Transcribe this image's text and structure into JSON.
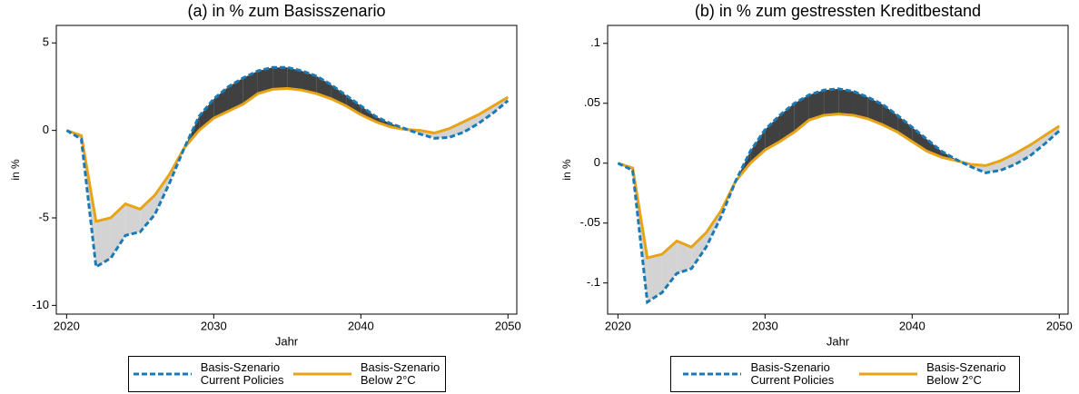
{
  "chart_data": [
    {
      "type": "line",
      "title": "(a)  in % zum Basisszenario",
      "x_label": "Jahr",
      "y_label": "in %",
      "x": [
        2020,
        2021,
        2022,
        2023,
        2024,
        2025,
        2026,
        2027,
        2028,
        2029,
        2030,
        2031,
        2032,
        2033,
        2034,
        2035,
        2036,
        2037,
        2038,
        2039,
        2040,
        2041,
        2042,
        2043,
        2044,
        2045,
        2046,
        2047,
        2048,
        2049,
        2050
      ],
      "series": [
        {
          "name": "Basis-Szenario\nCurrent Policies",
          "color": "#1a7ab5",
          "line_style": "dashed",
          "values": [
            0,
            -0.5,
            -7.8,
            -7.3,
            -6.0,
            -5.8,
            -4.8,
            -3.0,
            -1.0,
            0.8,
            1.8,
            2.5,
            3.0,
            3.4,
            3.6,
            3.6,
            3.4,
            3.1,
            2.6,
            2.0,
            1.4,
            0.8,
            0.4,
            0.1,
            -0.2,
            -0.45,
            -0.4,
            -0.1,
            0.4,
            1.0,
            1.7
          ]
        },
        {
          "name": "Basis-Szenario\nBelow 2°C",
          "color": "#e8a317",
          "line_style": "solid",
          "values": [
            0,
            -0.3,
            -5.2,
            -5.0,
            -4.2,
            -4.5,
            -3.7,
            -2.5,
            -1.0,
            0.0,
            0.7,
            1.1,
            1.5,
            2.1,
            2.35,
            2.4,
            2.3,
            2.1,
            1.8,
            1.4,
            0.9,
            0.5,
            0.2,
            0.05,
            0.0,
            -0.15,
            0.1,
            0.5,
            0.9,
            1.4,
            1.9
          ]
        }
      ],
      "band_colors": {
        "above": "#404040",
        "below": "#d3d3d3"
      },
      "xlim": [
        2019.3,
        2050.6
      ],
      "xticks": [
        2020,
        2030,
        2040,
        2050
      ],
      "ylim": [
        -10.5,
        6
      ],
      "yticks": [
        -10,
        -5,
        0,
        5
      ],
      "legend": "bottom"
    },
    {
      "type": "line",
      "title": "(b)  in % zum gestressten Kreditbestand",
      "x_label": "Jahr",
      "y_label": "in %",
      "x": [
        2020,
        2021,
        2022,
        2023,
        2024,
        2025,
        2026,
        2027,
        2028,
        2029,
        2030,
        2031,
        2032,
        2033,
        2034,
        2035,
        2036,
        2037,
        2038,
        2039,
        2040,
        2041,
        2042,
        2043,
        2044,
        2045,
        2046,
        2047,
        2048,
        2049,
        2050
      ],
      "series": [
        {
          "name": "Basis-Szenario\nCurrent Policies",
          "color": "#1a7ab5",
          "line_style": "dashed",
          "values": [
            0,
            -0.006,
            -0.116,
            -0.108,
            -0.092,
            -0.088,
            -0.07,
            -0.045,
            -0.015,
            0.01,
            0.028,
            0.04,
            0.05,
            0.057,
            0.061,
            0.062,
            0.06,
            0.055,
            0.049,
            0.04,
            0.03,
            0.02,
            0.01,
            0.003,
            -0.003,
            -0.008,
            -0.006,
            -0.001,
            0.006,
            0.016,
            0.027
          ]
        },
        {
          "name": "Basis-Szenario\nBelow 2°C",
          "color": "#e8a317",
          "line_style": "solid",
          "values": [
            0,
            -0.004,
            -0.079,
            -0.076,
            -0.065,
            -0.07,
            -0.058,
            -0.04,
            -0.015,
            0.0,
            0.011,
            0.018,
            0.026,
            0.036,
            0.04,
            0.041,
            0.04,
            0.037,
            0.032,
            0.026,
            0.018,
            0.01,
            0.005,
            0.002,
            -0.001,
            -0.002,
            0.002,
            0.008,
            0.015,
            0.023,
            0.031
          ]
        }
      ],
      "band_colors": {
        "above": "#404040",
        "below": "#d3d3d3"
      },
      "xlim": [
        2019.3,
        2050.6
      ],
      "xticks": [
        2020,
        2030,
        2040,
        2050
      ],
      "ylim": [
        -0.126,
        0.115
      ],
      "yticks": [
        {
          "value": -0.1,
          "label": "-.1"
        },
        {
          "value": -0.05,
          "label": "-.05"
        },
        0,
        {
          "value": 0.05,
          "label": ".05"
        },
        {
          "value": 0.1,
          "label": ".1"
        }
      ],
      "legend": "bottom"
    }
  ]
}
